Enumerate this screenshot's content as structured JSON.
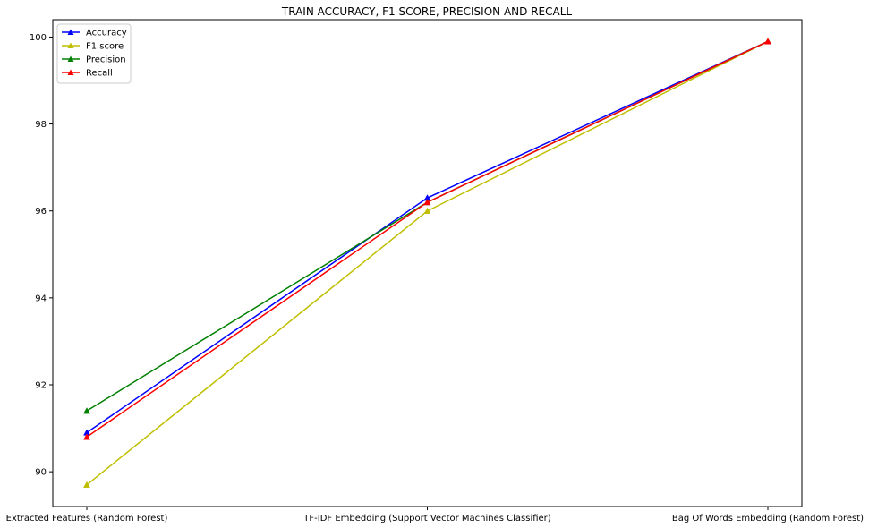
{
  "chart_data": {
    "type": "line",
    "title": "TRAIN ACCURACY, F1 SCORE, PRECISION AND RECALL",
    "xlabel": "",
    "ylabel": "",
    "categories": [
      "Extracted Features (Random Forest)",
      "TF-IDF Embedding (Support Vector Machines Classifier)",
      "Bag Of Words Embedding (Random Forest)"
    ],
    "ylim": [
      89.2,
      100.4
    ],
    "yticks": [
      90,
      92,
      94,
      96,
      98,
      100
    ],
    "grid": false,
    "legend_position": "top-left",
    "series": [
      {
        "name": "Accuracy",
        "color": "#0000ff",
        "marker": "triangle-up",
        "values": [
          90.9,
          96.3,
          99.9
        ]
      },
      {
        "name": "F1 score",
        "color": "#bfbf00",
        "marker": "triangle-up",
        "values": [
          89.7,
          96.0,
          99.9
        ]
      },
      {
        "name": "Precision",
        "color": "#008000",
        "marker": "triangle-up",
        "values": [
          91.4,
          96.2,
          99.9
        ]
      },
      {
        "name": "Recall",
        "color": "#ff0000",
        "marker": "triangle-up",
        "values": [
          90.8,
          96.2,
          99.9
        ]
      }
    ]
  }
}
